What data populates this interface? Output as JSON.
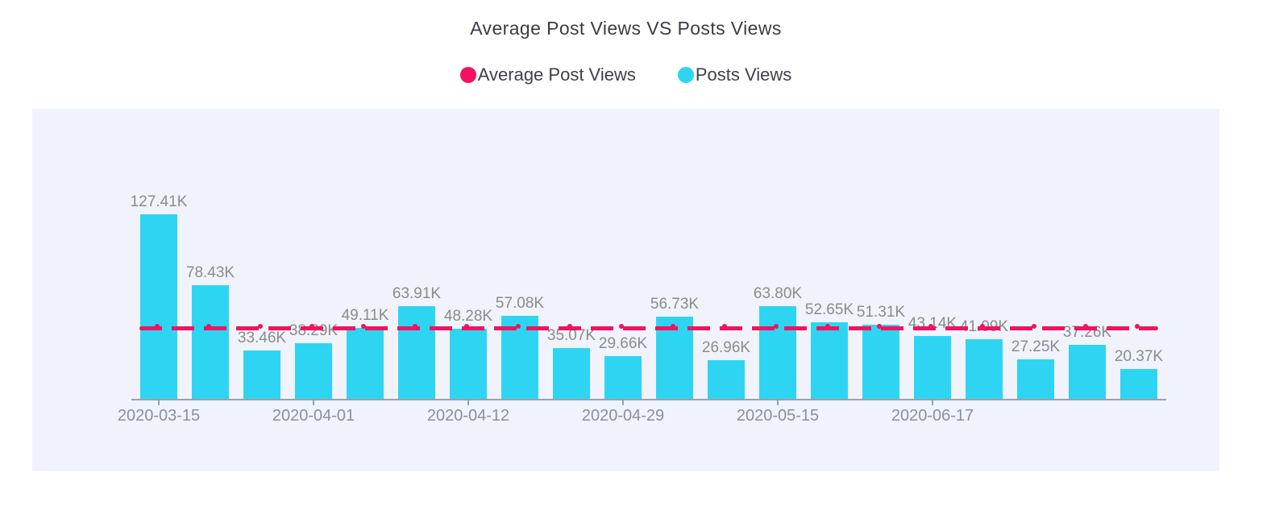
{
  "title": "Average Post Views VS Posts Views",
  "legend": [
    {
      "label": "Average Post Views",
      "color": "#f2125f"
    },
    {
      "label": "Posts Views",
      "color": "#2ed5f3"
    }
  ],
  "colors": {
    "bar": "#2ed5f3",
    "average_line": "#f2125f",
    "panel_background": "#f0f3fb",
    "value_label_text": "#8b8b8b",
    "axis_text": "#8a8f99",
    "axis_line": "#9aa0a8",
    "title_text": "#3c3c49"
  },
  "chart_data": {
    "type": "bar",
    "title": "Average Post Views VS Posts Views",
    "legend_position": "top",
    "grid": "off",
    "series": [
      {
        "name": "Posts Views",
        "type": "bar",
        "color": "#2ed5f3",
        "unit": "K views",
        "values_k": [
          127.41,
          78.43,
          33.46,
          38.29,
          49.11,
          63.91,
          48.28,
          57.08,
          35.07,
          29.66,
          56.73,
          26.96,
          63.8,
          52.65,
          51.31,
          43.14,
          41.09,
          27.25,
          37.26,
          20.37
        ],
        "value_labels": [
          "127.41K",
          "78.43K",
          "33.46K",
          "38.29K",
          "49.11K",
          "63.91K",
          "48.28K",
          "57.08K",
          "35.07K",
          "29.66K",
          "56.73K",
          "26.96K",
          "63.80K",
          "52.65K",
          "51.31K",
          "43.14K",
          "41.09K",
          "27.25K",
          "37.26K",
          "20.37K"
        ],
        "point_count": 20
      },
      {
        "name": "Average Post Views",
        "type": "line",
        "style": "dashed-with-markers",
        "color": "#f2125f",
        "description": "flat horizontal dashed line at the average of Posts Views, one marker per bar"
      }
    ],
    "x_axis": {
      "tick_labels": [
        {
          "index": 0,
          "label": "2020-03-15"
        },
        {
          "index": 3,
          "label": "2020-04-01"
        },
        {
          "index": 6,
          "label": "2020-04-12"
        },
        {
          "index": 9,
          "label": "2020-04-29"
        },
        {
          "index": 12,
          "label": "2020-05-15"
        },
        {
          "index": 15,
          "label": "2020-06-17"
        }
      ]
    }
  }
}
